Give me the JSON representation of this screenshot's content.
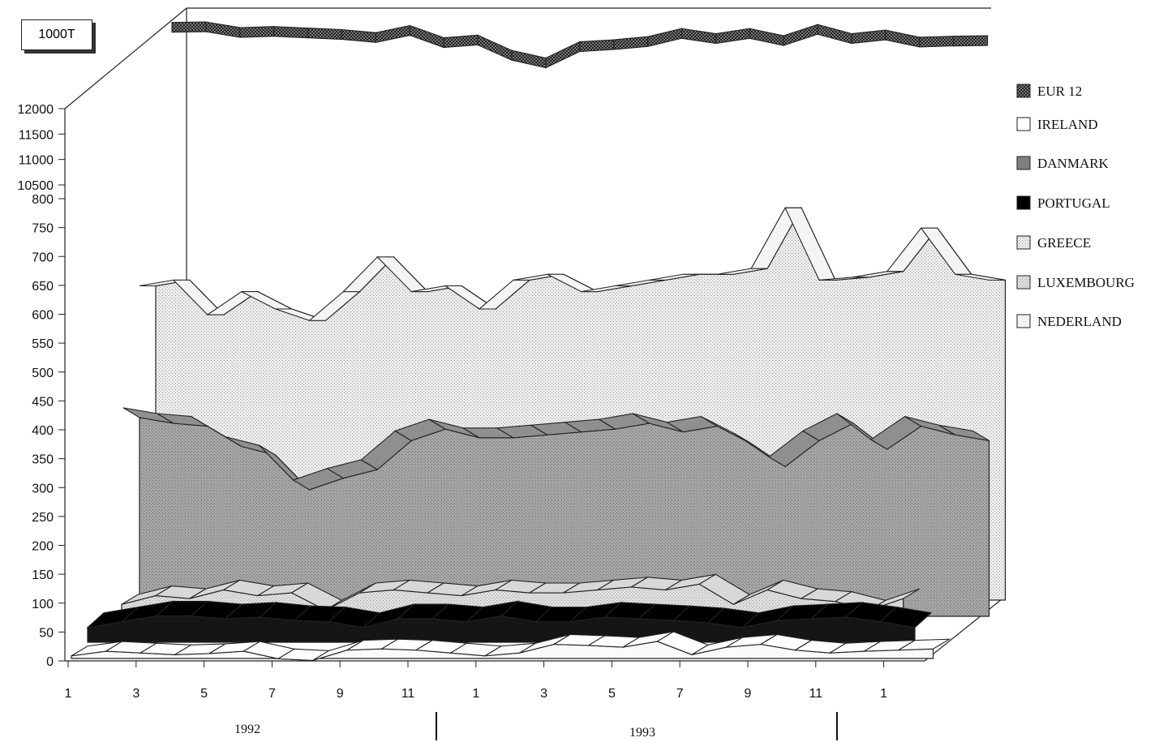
{
  "unit_label": "1000T",
  "years": [
    "1992",
    "1993"
  ],
  "chart_data": {
    "type": "area",
    "title": "",
    "xlabel": "",
    "ylabel": "1000T",
    "x_tick_labels": [
      "1",
      "3",
      "5",
      "7",
      "9",
      "11",
      "1",
      "3",
      "5",
      "7",
      "9",
      "11",
      "1"
    ],
    "y_upper_ticks": [
      10500,
      11000,
      11500,
      12000
    ],
    "y_lower_ticks": [
      0,
      50,
      100,
      150,
      200,
      250,
      300,
      350,
      400,
      450,
      500,
      550,
      600,
      650,
      700,
      750,
      800
    ],
    "ylim_lower": [
      0,
      800
    ],
    "ylim_upper": [
      10500,
      12000
    ],
    "legend_position": "right",
    "months": [
      "1992-01",
      "1992-02",
      "1992-03",
      "1992-04",
      "1992-05",
      "1992-06",
      "1992-07",
      "1992-08",
      "1992-09",
      "1992-10",
      "1992-11",
      "1992-12",
      "1993-01",
      "1993-02",
      "1993-03",
      "1993-04",
      "1993-05",
      "1993-06",
      "1993-07",
      "1993-08",
      "1993-09",
      "1993-10",
      "1993-11",
      "1993-12",
      "1994-01",
      "1994-02",
      "1994-03",
      "1994-04"
    ],
    "series": [
      {
        "name": "EUR 12",
        "color": "#4a4a4a",
        "values": [
          12100,
          12110,
          12000,
          12020,
          11990,
          11960,
          11900,
          12040,
          11800,
          11850,
          11550,
          11400,
          11720,
          11760,
          11820,
          11980,
          11880,
          11980,
          11840,
          12060,
          11880,
          11950,
          11810,
          11830,
          11840,
          null,
          null,
          null
        ]
      },
      {
        "name": "IRELAND",
        "color": "#f6f6f6",
        "values": [
          20,
          28,
          25,
          22,
          24,
          28,
          15,
          12,
          30,
          32,
          30,
          25,
          20,
          25,
          40,
          38,
          35,
          45,
          22,
          35,
          40,
          30,
          25,
          28,
          30,
          32,
          null,
          null
        ]
      },
      {
        "name": "DANMARK",
        "color": "#9a9a9a",
        "values": [
          410,
          400,
          395,
          360,
          345,
          285,
          305,
          320,
          370,
          390,
          375,
          375,
          380,
          385,
          390,
          400,
          385,
          395,
          365,
          325,
          370,
          400,
          355,
          395,
          380,
          370,
          null,
          null
        ]
      },
      {
        "name": "PORTUGAL",
        "color": "#111111",
        "values": [
          100,
          110,
          120,
          120,
          115,
          118,
          112,
          110,
          100,
          115,
          115,
          110,
          120,
          110,
          110,
          118,
          115,
          112,
          108,
          100,
          112,
          115,
          118,
          110,
          100,
          null,
          null,
          null
        ]
      },
      {
        "name": "GREECE",
        "color": "#e0e0e0",
        "values": [
          600,
          610,
          550,
          590,
          560,
          540,
          590,
          650,
          590,
          600,
          560,
          610,
          620,
          590,
          600,
          610,
          620,
          620,
          630,
          735,
          610,
          615,
          625,
          700,
          620,
          610,
          null,
          null
        ]
      },
      {
        "name": "LUXEMBOURG",
        "color": "#c4c4c4",
        "values": [
          140,
          155,
          150,
          165,
          155,
          160,
          130,
          160,
          165,
          160,
          155,
          165,
          160,
          160,
          165,
          170,
          165,
          175,
          140,
          165,
          150,
          145,
          130,
          150,
          null,
          null,
          null,
          null
        ]
      },
      {
        "name": "NEDERLAND",
        "color": "#eeeeee",
        "values": [
          null,
          null,
          null,
          null,
          null,
          null,
          null,
          null,
          null,
          null,
          null,
          null,
          null,
          null,
          null,
          null,
          null,
          null,
          null,
          null,
          null,
          null,
          null,
          null,
          null,
          null,
          null,
          null
        ]
      }
    ]
  }
}
